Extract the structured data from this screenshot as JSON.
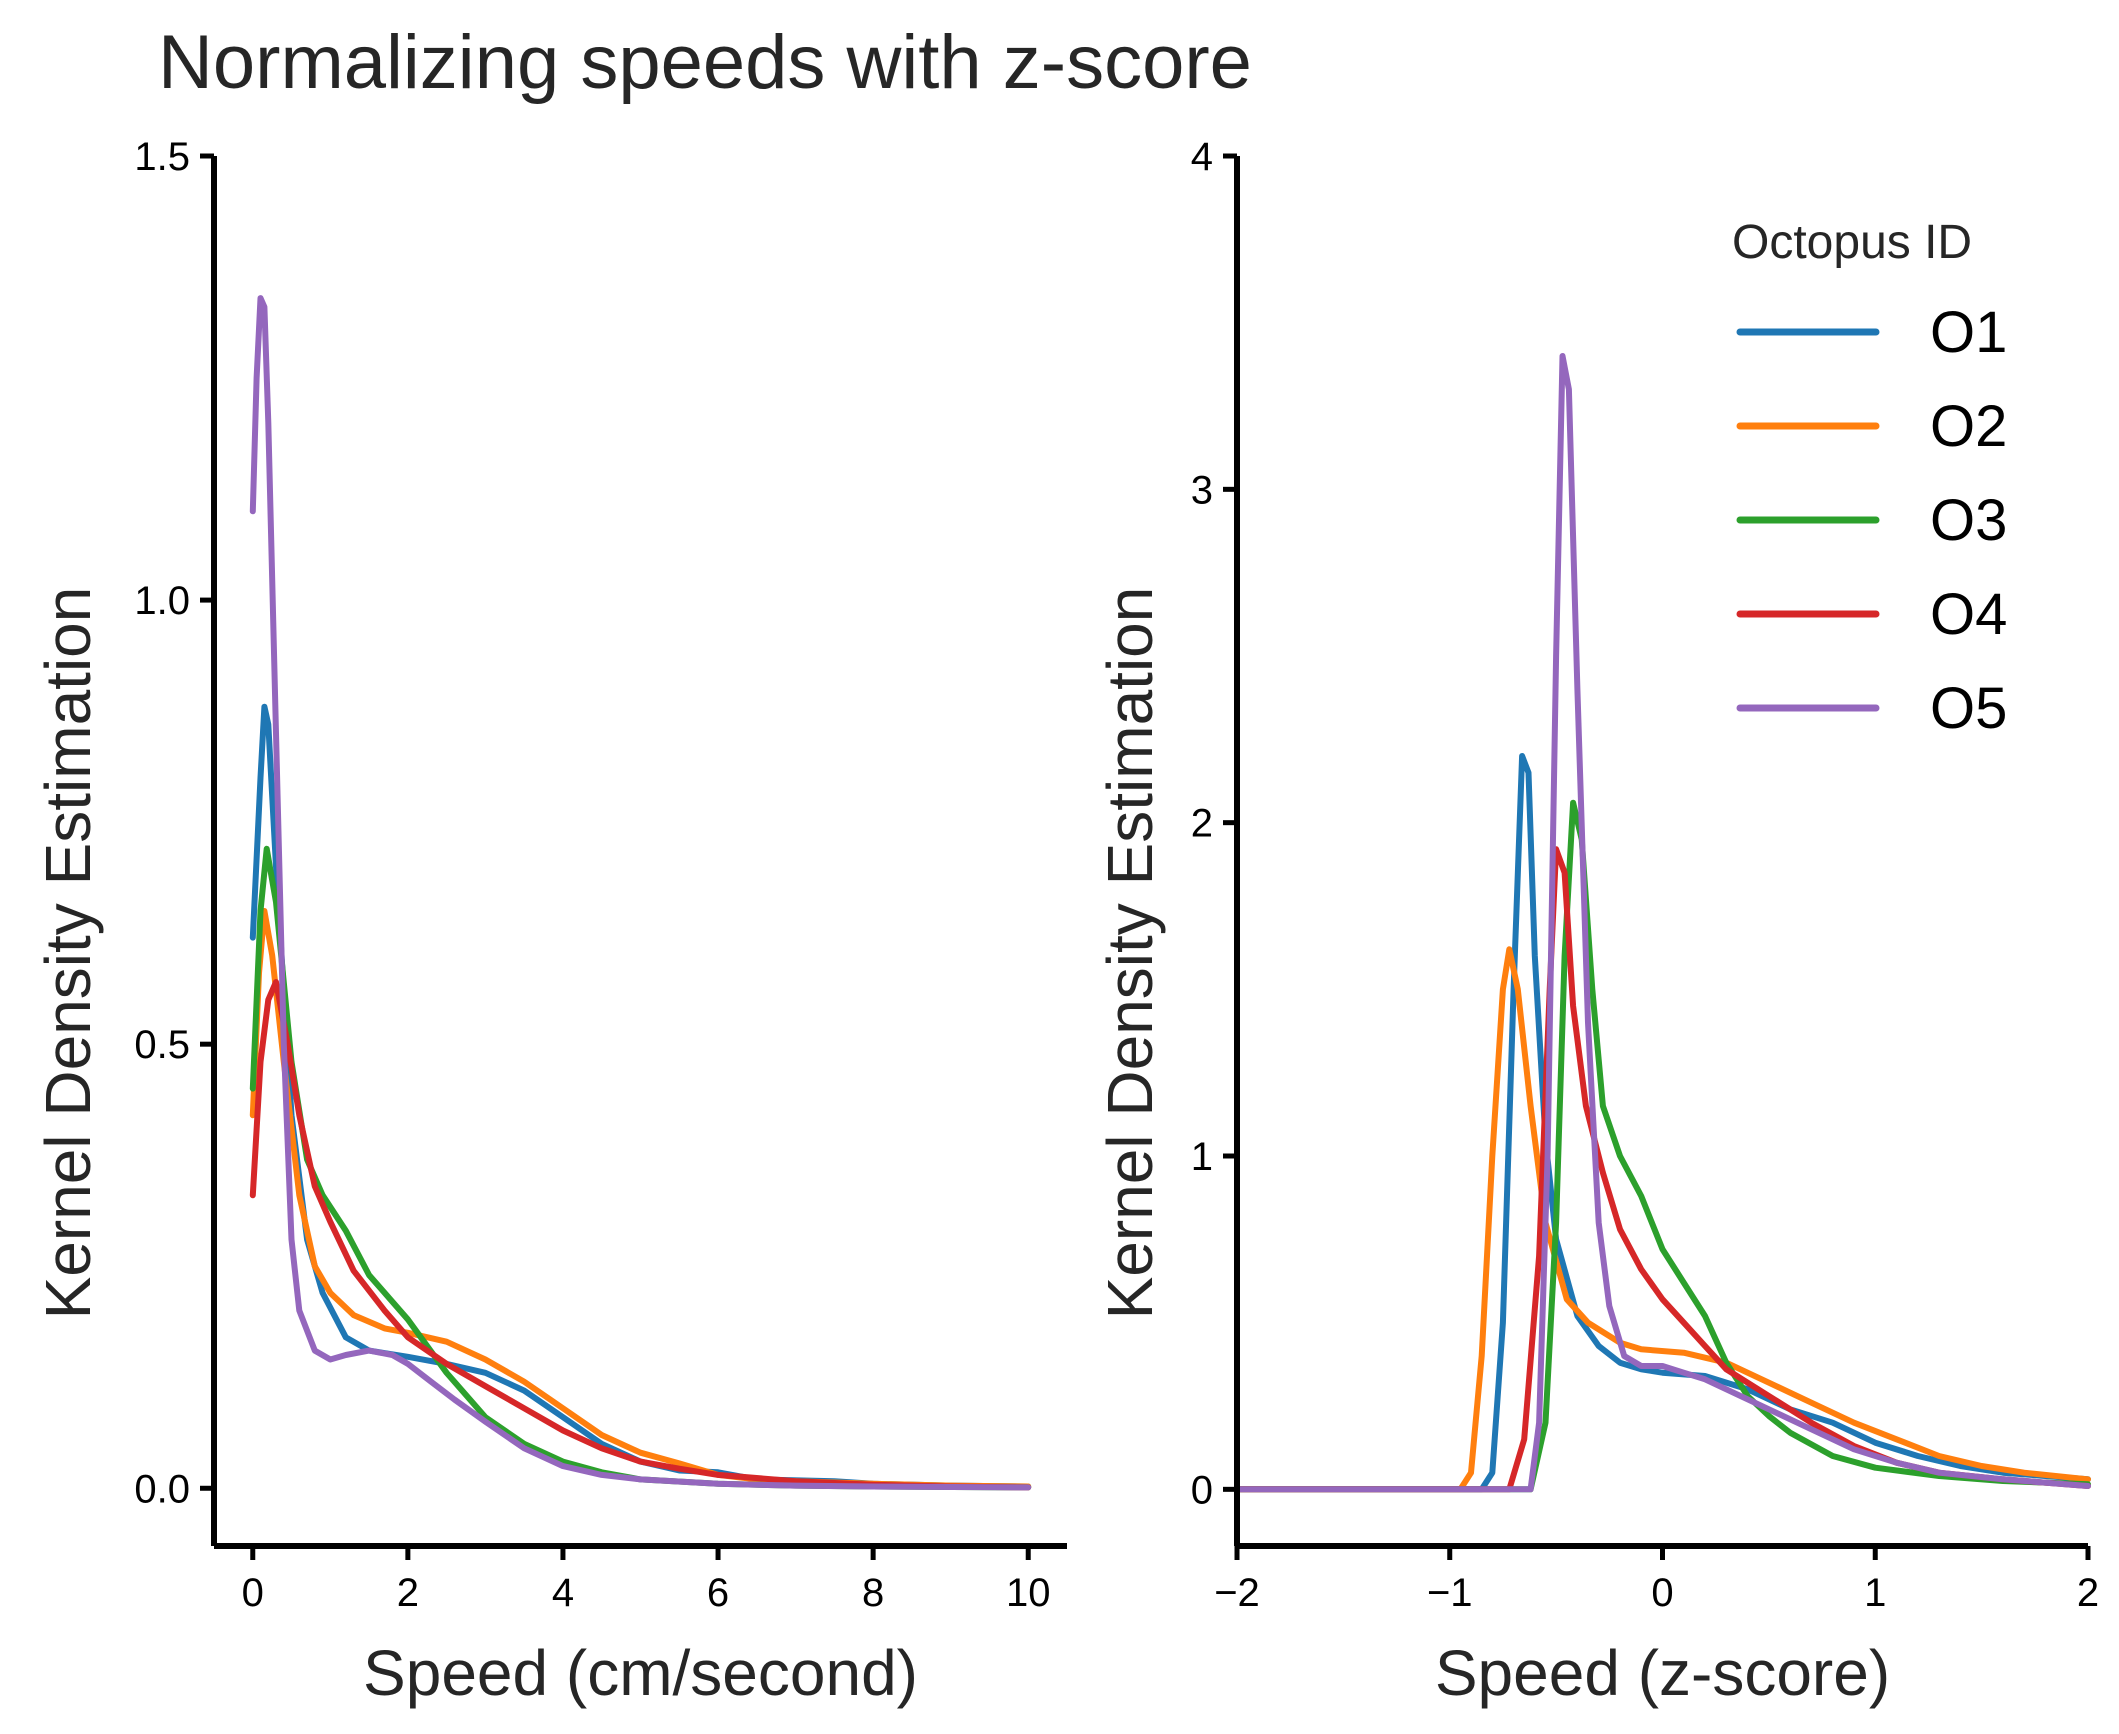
{
  "title": "Normalizing speeds with z-score",
  "legend": {
    "title": "Octopus ID",
    "placement": "upper-right of right panel",
    "entries": [
      {
        "label": "O1",
        "color": "#1f77b4"
      },
      {
        "label": "O2",
        "color": "#ff7f0e"
      },
      {
        "label": "O3",
        "color": "#2ca02c"
      },
      {
        "label": "O4",
        "color": "#d62728"
      },
      {
        "label": "O5",
        "color": "#9467bd"
      }
    ]
  },
  "chart_data": [
    {
      "type": "line",
      "xlabel": "Speed (cm/second)",
      "ylabel": "Kernel Density Estimation",
      "xlim": [
        -0.5,
        10.5
      ],
      "ylim": [
        -0.065,
        1.5
      ],
      "xticks": [
        0,
        2,
        4,
        6,
        8,
        10
      ],
      "xtick_labels": [
        "0",
        "2",
        "4",
        "6",
        "8",
        "10"
      ],
      "yticks": [
        0.0,
        0.5,
        1.0,
        1.5
      ],
      "ytick_labels": [
        "0.0",
        "0.5",
        "1.0",
        "1.5"
      ],
      "grid": false,
      "series": [
        {
          "name": "O1",
          "color": "#1f77b4",
          "points": [
            [
              0,
              0.62
            ],
            [
              0.1,
              0.8
            ],
            [
              0.15,
              0.88
            ],
            [
              0.2,
              0.86
            ],
            [
              0.3,
              0.7
            ],
            [
              0.5,
              0.42
            ],
            [
              0.7,
              0.28
            ],
            [
              0.9,
              0.22
            ],
            [
              1.2,
              0.17
            ],
            [
              1.5,
              0.155
            ],
            [
              2,
              0.148
            ],
            [
              2.5,
              0.14
            ],
            [
              3,
              0.13
            ],
            [
              3.5,
              0.11
            ],
            [
              4,
              0.08
            ],
            [
              4.5,
              0.05
            ],
            [
              5,
              0.03
            ],
            [
              5.5,
              0.02
            ],
            [
              6,
              0.018
            ],
            [
              6.5,
              0.01
            ],
            [
              7.5,
              0.008
            ],
            [
              8,
              0.005
            ],
            [
              9,
              0.003
            ],
            [
              10,
              0.002
            ]
          ]
        },
        {
          "name": "O2",
          "color": "#ff7f0e",
          "points": [
            [
              0,
              0.42
            ],
            [
              0.08,
              0.58
            ],
            [
              0.15,
              0.65
            ],
            [
              0.25,
              0.6
            ],
            [
              0.4,
              0.48
            ],
            [
              0.6,
              0.33
            ],
            [
              0.8,
              0.25
            ],
            [
              1,
              0.22
            ],
            [
              1.3,
              0.195
            ],
            [
              1.7,
              0.18
            ],
            [
              2,
              0.175
            ],
            [
              2.5,
              0.165
            ],
            [
              3,
              0.145
            ],
            [
              3.5,
              0.12
            ],
            [
              4,
              0.09
            ],
            [
              4.5,
              0.06
            ],
            [
              5,
              0.04
            ],
            [
              5.5,
              0.028
            ],
            [
              6,
              0.015
            ],
            [
              6.5,
              0.01
            ],
            [
              7,
              0.008
            ],
            [
              8,
              0.005
            ],
            [
              9,
              0.003
            ],
            [
              10,
              0.002
            ]
          ]
        },
        {
          "name": "O3",
          "color": "#2ca02c",
          "points": [
            [
              0,
              0.45
            ],
            [
              0.1,
              0.65
            ],
            [
              0.18,
              0.72
            ],
            [
              0.3,
              0.66
            ],
            [
              0.5,
              0.48
            ],
            [
              0.7,
              0.37
            ],
            [
              0.9,
              0.33
            ],
            [
              1.2,
              0.29
            ],
            [
              1.5,
              0.24
            ],
            [
              2,
              0.19
            ],
            [
              2.5,
              0.13
            ],
            [
              3,
              0.08
            ],
            [
              3.5,
              0.05
            ],
            [
              4,
              0.03
            ],
            [
              4.5,
              0.018
            ],
            [
              5,
              0.01
            ],
            [
              6,
              0.005
            ],
            [
              7,
              0.003
            ],
            [
              8,
              0.002
            ],
            [
              10,
              0.001
            ]
          ]
        },
        {
          "name": "O4",
          "color": "#d62728",
          "points": [
            [
              0,
              0.33
            ],
            [
              0.1,
              0.48
            ],
            [
              0.2,
              0.55
            ],
            [
              0.3,
              0.57
            ],
            [
              0.45,
              0.5
            ],
            [
              0.6,
              0.42
            ],
            [
              0.8,
              0.34
            ],
            [
              1,
              0.3
            ],
            [
              1.3,
              0.245
            ],
            [
              1.7,
              0.2
            ],
            [
              2,
              0.17
            ],
            [
              2.5,
              0.14
            ],
            [
              3,
              0.115
            ],
            [
              3.5,
              0.09
            ],
            [
              4,
              0.065
            ],
            [
              4.5,
              0.045
            ],
            [
              5,
              0.03
            ],
            [
              5.5,
              0.022
            ],
            [
              6,
              0.015
            ],
            [
              7,
              0.008
            ],
            [
              8,
              0.004
            ],
            [
              9,
              0.002
            ],
            [
              10,
              0.001
            ]
          ]
        },
        {
          "name": "O5",
          "color": "#9467bd",
          "points": [
            [
              0,
              1.1
            ],
            [
              0.05,
              1.25
            ],
            [
              0.1,
              1.34
            ],
            [
              0.15,
              1.33
            ],
            [
              0.2,
              1.2
            ],
            [
              0.3,
              0.85
            ],
            [
              0.4,
              0.5
            ],
            [
              0.5,
              0.28
            ],
            [
              0.6,
              0.2
            ],
            [
              0.8,
              0.155
            ],
            [
              1,
              0.145
            ],
            [
              1.2,
              0.15
            ],
            [
              1.5,
              0.155
            ],
            [
              1.8,
              0.15
            ],
            [
              2,
              0.14
            ],
            [
              2.3,
              0.12
            ],
            [
              2.6,
              0.1
            ],
            [
              3,
              0.075
            ],
            [
              3.5,
              0.045
            ],
            [
              4,
              0.025
            ],
            [
              4.5,
              0.015
            ],
            [
              5,
              0.01
            ],
            [
              6,
              0.005
            ],
            [
              7,
              0.003
            ],
            [
              8,
              0.002
            ],
            [
              10,
              0.001
            ]
          ]
        }
      ]
    },
    {
      "type": "line",
      "xlabel": "Speed (z-score)",
      "ylabel": "Kernel Density Estimation",
      "xlim": [
        -2,
        2
      ],
      "ylim": [
        -0.17,
        4
      ],
      "xticks": [
        -2,
        -1,
        0,
        1,
        2
      ],
      "xtick_labels": [
        "−2",
        "−1",
        "0",
        "1",
        "2"
      ],
      "yticks": [
        0,
        1,
        2,
        3,
        4
      ],
      "ytick_labels": [
        "0",
        "1",
        "2",
        "3",
        "4"
      ],
      "grid": false,
      "series": [
        {
          "name": "O1",
          "color": "#1f77b4",
          "points": [
            [
              -2,
              0
            ],
            [
              -0.85,
              0
            ],
            [
              -0.8,
              0.05
            ],
            [
              -0.75,
              0.5
            ],
            [
              -0.7,
              1.5
            ],
            [
              -0.66,
              2.2
            ],
            [
              -0.63,
              2.15
            ],
            [
              -0.6,
              1.6
            ],
            [
              -0.55,
              1.05
            ],
            [
              -0.5,
              0.75
            ],
            [
              -0.4,
              0.52
            ],
            [
              -0.3,
              0.43
            ],
            [
              -0.2,
              0.38
            ],
            [
              -0.1,
              0.36
            ],
            [
              0,
              0.35
            ],
            [
              0.2,
              0.34
            ],
            [
              0.4,
              0.3
            ],
            [
              0.6,
              0.24
            ],
            [
              0.8,
              0.2
            ],
            [
              1,
              0.14
            ],
            [
              1.2,
              0.1
            ],
            [
              1.4,
              0.07
            ],
            [
              1.6,
              0.05
            ],
            [
              1.8,
              0.04
            ],
            [
              2,
              0.03
            ]
          ]
        },
        {
          "name": "O2",
          "color": "#ff7f0e",
          "points": [
            [
              -2,
              0
            ],
            [
              -0.95,
              0
            ],
            [
              -0.9,
              0.05
            ],
            [
              -0.85,
              0.4
            ],
            [
              -0.8,
              1
            ],
            [
              -0.75,
              1.5
            ],
            [
              -0.72,
              1.62
            ],
            [
              -0.68,
              1.5
            ],
            [
              -0.62,
              1.15
            ],
            [
              -0.55,
              0.8
            ],
            [
              -0.45,
              0.57
            ],
            [
              -0.35,
              0.5
            ],
            [
              -0.2,
              0.44
            ],
            [
              -0.1,
              0.42
            ],
            [
              0.1,
              0.41
            ],
            [
              0.3,
              0.38
            ],
            [
              0.5,
              0.32
            ],
            [
              0.7,
              0.26
            ],
            [
              0.9,
              0.2
            ],
            [
              1.1,
              0.15
            ],
            [
              1.3,
              0.1
            ],
            [
              1.5,
              0.07
            ],
            [
              1.7,
              0.05
            ],
            [
              2,
              0.03
            ]
          ]
        },
        {
          "name": "O3",
          "color": "#2ca02c",
          "points": [
            [
              -2,
              0
            ],
            [
              -0.62,
              0
            ],
            [
              -0.55,
              0.2
            ],
            [
              -0.5,
              0.8
            ],
            [
              -0.46,
              1.6
            ],
            [
              -0.42,
              2.06
            ],
            [
              -0.38,
              1.95
            ],
            [
              -0.33,
              1.5
            ],
            [
              -0.28,
              1.15
            ],
            [
              -0.2,
              1
            ],
            [
              -0.1,
              0.88
            ],
            [
              0,
              0.72
            ],
            [
              0.1,
              0.62
            ],
            [
              0.2,
              0.52
            ],
            [
              0.3,
              0.38
            ],
            [
              0.4,
              0.28
            ],
            [
              0.5,
              0.22
            ],
            [
              0.6,
              0.17
            ],
            [
              0.8,
              0.1
            ],
            [
              1,
              0.065
            ],
            [
              1.3,
              0.04
            ],
            [
              1.6,
              0.025
            ],
            [
              2,
              0.015
            ]
          ]
        },
        {
          "name": "O4",
          "color": "#d62728",
          "points": [
            [
              -2,
              0
            ],
            [
              -0.72,
              0
            ],
            [
              -0.65,
              0.15
            ],
            [
              -0.58,
              0.7
            ],
            [
              -0.53,
              1.5
            ],
            [
              -0.5,
              1.92
            ],
            [
              -0.46,
              1.85
            ],
            [
              -0.42,
              1.45
            ],
            [
              -0.36,
              1.15
            ],
            [
              -0.28,
              0.95
            ],
            [
              -0.2,
              0.78
            ],
            [
              -0.1,
              0.66
            ],
            [
              0,
              0.57
            ],
            [
              0.1,
              0.5
            ],
            [
              0.2,
              0.43
            ],
            [
              0.3,
              0.36
            ],
            [
              0.5,
              0.28
            ],
            [
              0.7,
              0.2
            ],
            [
              0.9,
              0.13
            ],
            [
              1.1,
              0.08
            ],
            [
              1.3,
              0.05
            ],
            [
              1.6,
              0.03
            ],
            [
              2,
              0.01
            ]
          ]
        },
        {
          "name": "O5",
          "color": "#9467bd",
          "points": [
            [
              -2,
              0
            ],
            [
              -0.62,
              0
            ],
            [
              -0.58,
              0.2
            ],
            [
              -0.54,
              1
            ],
            [
              -0.5,
              2.5
            ],
            [
              -0.47,
              3.4
            ],
            [
              -0.44,
              3.3
            ],
            [
              -0.4,
              2.4
            ],
            [
              -0.35,
              1.4
            ],
            [
              -0.3,
              0.8
            ],
            [
              -0.25,
              0.55
            ],
            [
              -0.18,
              0.4
            ],
            [
              -0.1,
              0.37
            ],
            [
              0,
              0.37
            ],
            [
              0.1,
              0.35
            ],
            [
              0.2,
              0.33
            ],
            [
              0.3,
              0.3
            ],
            [
              0.5,
              0.24
            ],
            [
              0.7,
              0.18
            ],
            [
              0.9,
              0.12
            ],
            [
              1.1,
              0.08
            ],
            [
              1.3,
              0.05
            ],
            [
              1.6,
              0.03
            ],
            [
              2,
              0.01
            ]
          ]
        }
      ]
    }
  ]
}
